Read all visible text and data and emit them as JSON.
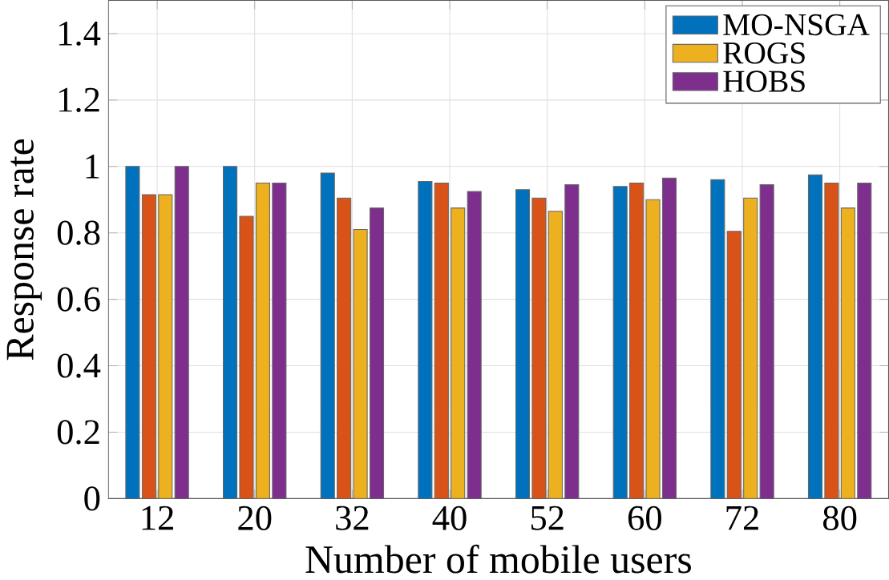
{
  "chart_data": {
    "type": "bar",
    "xlabel": "Number of mobile users",
    "ylabel": "Response rate",
    "categories": [
      "12",
      "20",
      "32",
      "40",
      "52",
      "60",
      "72",
      "80"
    ],
    "series": [
      {
        "name": "MO-NSGA",
        "color": "#0072bd",
        "values": [
          1.0,
          1.0,
          0.98,
          0.955,
          0.93,
          0.94,
          0.96,
          0.975
        ]
      },
      {
        "color": "#d95319",
        "values": [
          0.915,
          0.85,
          0.905,
          0.95,
          0.905,
          0.95,
          0.805,
          0.95
        ]
      },
      {
        "name": "ROGS",
        "color": "#edb120",
        "values": [
          0.915,
          0.95,
          0.81,
          0.875,
          0.865,
          0.9,
          0.905,
          0.875
        ]
      },
      {
        "name": "HOBS",
        "color": "#7e2f8e",
        "values": [
          1.0,
          0.95,
          0.875,
          0.925,
          0.945,
          0.965,
          0.945,
          0.95
        ]
      }
    ],
    "ylim": [
      0,
      1.5
    ],
    "yticks": [
      0,
      0.2,
      0.4,
      0.6,
      0.8,
      1,
      1.2,
      1.4
    ],
    "grid": true,
    "legend": "top right"
  }
}
